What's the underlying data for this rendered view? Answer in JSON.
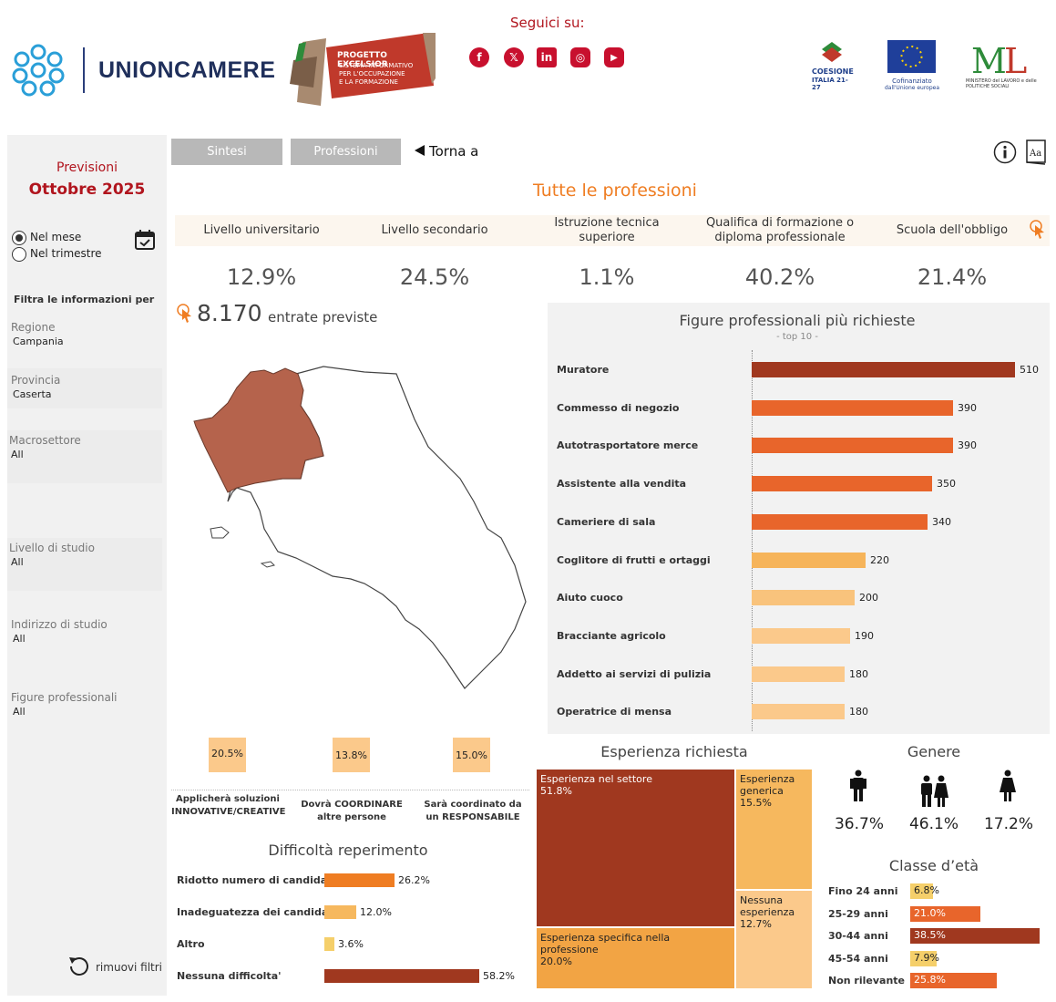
{
  "header": {
    "brand": "UNIONCAMERE",
    "excelsior_title": "PROGETTO EXCELSIOR",
    "excelsior_sub1": "SISTEMA INFORMATIVO",
    "excelsior_sub2": "PER L'OCCUPAZIONE",
    "excelsior_sub3": "E LA FORMAZIONE",
    "follow": "Seguici su:",
    "social": [
      {
        "name": "facebook-icon",
        "glyph": "f"
      },
      {
        "name": "x-icon",
        "glyph": "𝕏"
      },
      {
        "name": "linkedin-icon",
        "glyph": "in"
      },
      {
        "name": "instagram-icon",
        "glyph": "◎"
      },
      {
        "name": "youtube-icon",
        "glyph": "▶"
      }
    ],
    "coesione_line1": "COESIONE",
    "coesione_line2": "ITALIA 21-27",
    "eu_line1": "Cofinanziato",
    "eu_line2": "dall'Unione europea",
    "ministero": "MINISTERO del LAVORO e delle POLITICHE SOCIALI"
  },
  "sidebar": {
    "title1": "Previsioni",
    "title2": "Ottobre 2025",
    "radio_month": "Nel mese",
    "radio_quarter": "Nel trimestre",
    "filter_header": "Filtra le informazioni per",
    "filters": [
      {
        "label": "Regione",
        "value": "Campania"
      },
      {
        "label": "Provincia",
        "value": "Caserta"
      },
      {
        "label": "Macrosettore",
        "value": "All"
      },
      {
        "label": "Livello di studio",
        "value": "All"
      },
      {
        "label": "Indirizzo di studio",
        "value": "All"
      },
      {
        "label": "Figure professionali",
        "value": "All"
      }
    ],
    "reset": "rimuovi filtri"
  },
  "tabs": {
    "sintesi": "Sintesi",
    "professioni": "Professioni",
    "back": "Torna a"
  },
  "main": {
    "title": "Tutte le professioni",
    "education": [
      {
        "label": "Livello universitario",
        "value": "12.9%"
      },
      {
        "label": "Livello secondario",
        "value": "24.5%"
      },
      {
        "label": "Istruzione tecnica superiore",
        "value": "1.1%"
      },
      {
        "label": "Qualifica di formazione o diploma professionale",
        "value": "40.2%"
      },
      {
        "label": "Scuola dell'obbligo",
        "value": "21.4%"
      }
    ],
    "entries_value": "8.170",
    "entries_label": "entrate previste"
  },
  "skills": [
    {
      "value": "20.5%",
      "label": "Applicherà soluzioni INNOVATIVE/CREATIVE"
    },
    {
      "value": "13.8%",
      "label": "Dovrà COORDINARE altre persone"
    },
    {
      "value": "15.0%",
      "label": "Sarà coordinato da un RESPONSABILE"
    }
  ],
  "difficulty": {
    "title": "Difficoltà reperimento",
    "items": [
      {
        "label": "Ridotto numero di candidati",
        "value": 26.2,
        "text": "26.2%",
        "color": "#ef7d22"
      },
      {
        "label": "Inadeguatezza dei candidati",
        "value": 12.0,
        "text": "12.0%",
        "color": "#f6b85e"
      },
      {
        "label": "Altro",
        "value": 3.6,
        "text": "3.6%",
        "color": "#f5cf6a"
      },
      {
        "label": "Nessuna difficolta'",
        "value": 58.2,
        "text": "58.2%",
        "color": "#a0381f"
      }
    ]
  },
  "chart_data": {
    "type": "bar",
    "title": "Figure professionali più richieste",
    "subtitle": "- top 10 -",
    "categories": [
      "Muratore",
      "Commesso di negozio",
      "Autotrasportatore merce",
      "Assistente alla vendita",
      "Cameriere di sala",
      "Coglitore di frutti e ortaggi",
      "Aiuto cuoco",
      "Bracciante agricolo",
      "Addetto ai servizi di pulizia",
      "Operatrice di mensa"
    ],
    "values": [
      510,
      390,
      390,
      350,
      340,
      220,
      200,
      190,
      180,
      180
    ],
    "colors": [
      "#a0381f",
      "#e8652b",
      "#e8652b",
      "#e8652b",
      "#e8652b",
      "#f6b45a",
      "#f9c37c",
      "#fbc98b",
      "#fbc98b",
      "#fbc98b"
    ],
    "xlim": [
      0,
      600
    ]
  },
  "experience": {
    "title": "Esperienza richiesta",
    "items": [
      {
        "label": "Esperienza nel settore",
        "value": "51.8%",
        "color": "#a0381f"
      },
      {
        "label": "Esperienza generica",
        "value": "15.5%",
        "color": "#f6b85e"
      },
      {
        "label": "Nessuna esperienza",
        "value": "12.7%",
        "color": "#fbc98b"
      },
      {
        "label": "Esperienza specifica nella professione",
        "value": "20.0%",
        "color": "#f2a444"
      }
    ]
  },
  "gender": {
    "title": "Genere",
    "male": "36.7%",
    "both": "46.1%",
    "female": "17.2%"
  },
  "age": {
    "title": "Classe d’età",
    "items": [
      {
        "label": "Fino 24 anni",
        "value": 6.8,
        "text": "6.8%",
        "color": "#f5cf6a"
      },
      {
        "label": "25-29 anni",
        "value": 21.0,
        "text": "21.0%",
        "color": "#e8652b"
      },
      {
        "label": "30-44 anni",
        "value": 38.5,
        "text": "38.5%",
        "color": "#a0381f"
      },
      {
        "label": "45-54 anni",
        "value": 7.9,
        "text": "7.9%",
        "color": "#f5cf6a"
      },
      {
        "label": "Non rilevante",
        "value": 25.8,
        "text": "25.8%",
        "color": "#e8652b"
      }
    ]
  }
}
